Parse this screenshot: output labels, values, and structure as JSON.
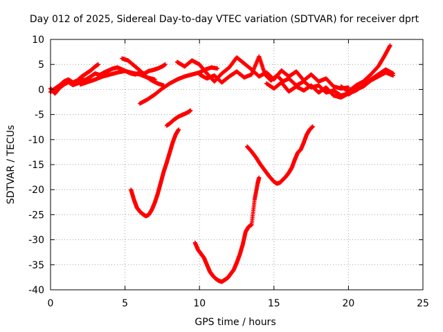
{
  "chart_data": {
    "type": "scatter",
    "title": "Day 012 of 2025, Sidereal Day-to-day VTEC variation (SDTVAR) for receiver dprt",
    "xlabel": "GPS time / hours",
    "ylabel": "SDTVAR / TECUs",
    "xlim": [
      0,
      25
    ],
    "ylim": [
      -40,
      10
    ],
    "x_ticks": [
      "0",
      "5",
      "10",
      "15",
      "20",
      "25"
    ],
    "y_ticks": [
      "10",
      "5",
      "0",
      "-5",
      "-10",
      "-15",
      "-20",
      "-25",
      "-30",
      "-35",
      "-40"
    ],
    "grid": true,
    "marker": "plus",
    "color": "#ff0000",
    "series": [
      {
        "x": [
          0.0,
          0.3,
          0.6,
          0.9,
          1.2,
          1.5,
          1.8,
          2.1,
          2.4,
          2.7,
          3.0,
          3.3,
          3.6,
          3.9,
          4.2,
          4.5,
          4.8,
          5.1,
          5.4,
          5.7,
          6.0,
          6.3,
          6.6,
          6.9,
          7.2,
          7.5,
          7.7
        ],
        "y": [
          0.2,
          -0.8,
          0.3,
          1.0,
          1.5,
          0.9,
          1.2,
          1.8,
          2.0,
          2.6,
          3.2,
          2.9,
          3.4,
          3.8,
          4.2,
          4.4,
          4.0,
          3.6,
          3.2,
          3.0,
          3.4,
          3.2,
          3.7,
          3.9,
          4.2,
          4.6,
          5.0
        ]
      },
      {
        "x": [
          0.0,
          0.3,
          0.6,
          0.9,
          1.2,
          1.5,
          1.8,
          2.1,
          2.4,
          2.7,
          3.0,
          3.2
        ],
        "y": [
          -0.5,
          0.2,
          0.8,
          1.6,
          2.0,
          1.4,
          1.8,
          2.6,
          3.2,
          3.8,
          4.6,
          5.0
        ]
      },
      {
        "x": [
          2.0,
          2.5,
          3.0,
          3.5,
          4.0,
          4.5,
          5.0,
          5.5,
          6.0,
          6.5,
          7.0
        ],
        "y": [
          1.0,
          1.5,
          2.0,
          2.6,
          3.0,
          3.4,
          3.7,
          3.3,
          3.0,
          2.4,
          2.0
        ]
      },
      {
        "x": [
          4.8,
          5.2,
          5.6,
          6.0,
          6.4,
          6.8,
          7.2,
          7.6
        ],
        "y": [
          6.2,
          5.8,
          4.8,
          3.8,
          2.6,
          1.8,
          1.2,
          0.8
        ]
      },
      {
        "x": [
          6.0,
          6.5,
          7.0,
          7.5,
          8.0,
          8.5,
          9.0,
          9.5,
          10.0,
          10.4,
          10.8,
          11.2
        ],
        "y": [
          -2.8,
          -2.0,
          -1.0,
          0.2,
          1.2,
          2.0,
          2.6,
          3.0,
          3.4,
          4.0,
          4.4,
          4.2
        ]
      },
      {
        "x": [
          8.5,
          9.0,
          9.5,
          10.0,
          10.5,
          11.0,
          11.5,
          12.0,
          12.5,
          13.0,
          13.5,
          14.0,
          14.5,
          15.0,
          15.5,
          16.0,
          16.5,
          17.0,
          17.5,
          18.0,
          18.5,
          19.0,
          19.5,
          20.0
        ],
        "y": [
          5.5,
          4.6,
          5.8,
          5.0,
          3.2,
          1.6,
          3.2,
          4.4,
          6.4,
          5.2,
          4.0,
          2.6,
          3.4,
          2.0,
          3.8,
          2.6,
          3.6,
          1.8,
          3.0,
          1.6,
          2.2,
          0.6,
          0.2,
          0.4
        ]
      },
      {
        "x": [
          10.0,
          10.5,
          11.0,
          11.5,
          12.0,
          12.5,
          13.0,
          13.5,
          14.0,
          14.4,
          14.8,
          15.2,
          15.6,
          16.0,
          16.5,
          17.0,
          17.5,
          18.0,
          18.5,
          19.0,
          19.5,
          20.0
        ],
        "y": [
          3.0,
          2.2,
          2.8,
          1.4,
          2.6,
          3.6,
          2.4,
          3.0,
          6.6,
          3.0,
          1.8,
          2.8,
          1.6,
          2.2,
          0.8,
          1.6,
          0.4,
          0.8,
          -0.6,
          -0.2,
          -1.2,
          -0.8
        ]
      },
      {
        "x": [
          14.5,
          15.0,
          15.5,
          16.0,
          16.5,
          17.0,
          17.5,
          18.0,
          18.5,
          19.0,
          19.5,
          20.0,
          20.5,
          21.0,
          21.5,
          22.0,
          22.5,
          23.0
        ],
        "y": [
          1.2,
          0.2,
          1.4,
          -0.4,
          0.6,
          -0.2,
          0.8,
          -0.6,
          0.4,
          -1.2,
          -1.6,
          -0.8,
          -0.2,
          0.8,
          2.0,
          3.0,
          4.0,
          3.2
        ]
      },
      {
        "x": [
          19.5,
          20.0,
          20.5,
          21.0,
          21.5,
          22.0,
          22.4,
          22.8
        ],
        "y": [
          0.6,
          -0.4,
          0.8,
          1.6,
          3.0,
          4.6,
          6.6,
          8.8
        ]
      },
      {
        "x": [
          20.0,
          20.5,
          21.0,
          21.5,
          22.0,
          22.5,
          23.0
        ],
        "y": [
          -1.0,
          0.0,
          0.6,
          1.8,
          2.6,
          3.4,
          2.8
        ]
      },
      {
        "x": [
          5.4,
          5.6,
          5.8,
          6.0,
          6.2,
          6.4,
          6.6,
          6.8,
          7.0,
          7.2,
          7.4,
          7.6,
          7.8,
          8.0,
          8.2,
          8.4,
          8.6
        ],
        "y": [
          -20.0,
          -22.0,
          -23.6,
          -24.4,
          -24.9,
          -25.3,
          -25.0,
          -24.0,
          -22.6,
          -20.8,
          -18.6,
          -16.4,
          -14.6,
          -12.6,
          -10.6,
          -9.0,
          -8.0
        ]
      },
      {
        "x": [
          7.8,
          8.0,
          8.3,
          8.6,
          8.9,
          9.2,
          9.4
        ],
        "y": [
          -7.2,
          -6.8,
          -6.0,
          -5.4,
          -5.0,
          -4.6,
          -4.2
        ]
      },
      {
        "x": [
          9.7,
          9.9,
          10.1,
          10.3,
          10.5,
          10.7,
          10.9,
          11.1,
          11.3,
          11.5,
          11.7,
          11.9,
          12.1,
          12.3,
          12.5,
          12.7,
          12.9,
          13.1,
          13.3,
          13.5,
          13.7,
          13.9,
          14.0
        ],
        "y": [
          -30.6,
          -32.0,
          -32.8,
          -33.6,
          -35.0,
          -36.4,
          -37.2,
          -37.8,
          -38.2,
          -38.4,
          -38.0,
          -37.6,
          -36.8,
          -36.0,
          -34.6,
          -33.0,
          -31.0,
          -28.4,
          -27.4,
          -27.0,
          -22.0,
          -18.8,
          -17.6
        ]
      },
      {
        "x": [
          13.2,
          13.5,
          13.8,
          14.1,
          14.4,
          14.7,
          15.0,
          15.2,
          15.4,
          15.6,
          15.8,
          16.0,
          16.2,
          16.4,
          16.6,
          16.8,
          17.0,
          17.2,
          17.4,
          17.6
        ],
        "y": [
          -11.4,
          -12.4,
          -13.6,
          -15.0,
          -16.2,
          -17.4,
          -18.4,
          -18.8,
          -18.6,
          -18.0,
          -17.4,
          -16.6,
          -15.6,
          -14.0,
          -12.6,
          -12.0,
          -10.6,
          -9.0,
          -8.0,
          -7.4
        ]
      }
    ]
  }
}
